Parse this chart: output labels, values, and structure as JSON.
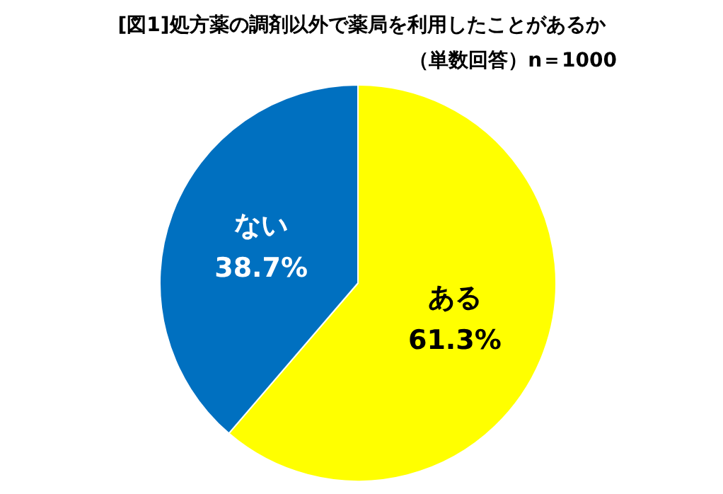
{
  "chart_data": {
    "type": "pie",
    "title": "[図1]処方薬の調剤以外で薬局を利用したことがあるか",
    "subtitle": "（単数回答）n＝1000",
    "categories": [
      "ある",
      "ない"
    ],
    "values": [
      61.3,
      38.7
    ],
    "colors": [
      "#ffff00",
      "#0070c0"
    ],
    "value_labels": [
      "61.3%",
      "38.7%"
    ],
    "legend": false
  }
}
